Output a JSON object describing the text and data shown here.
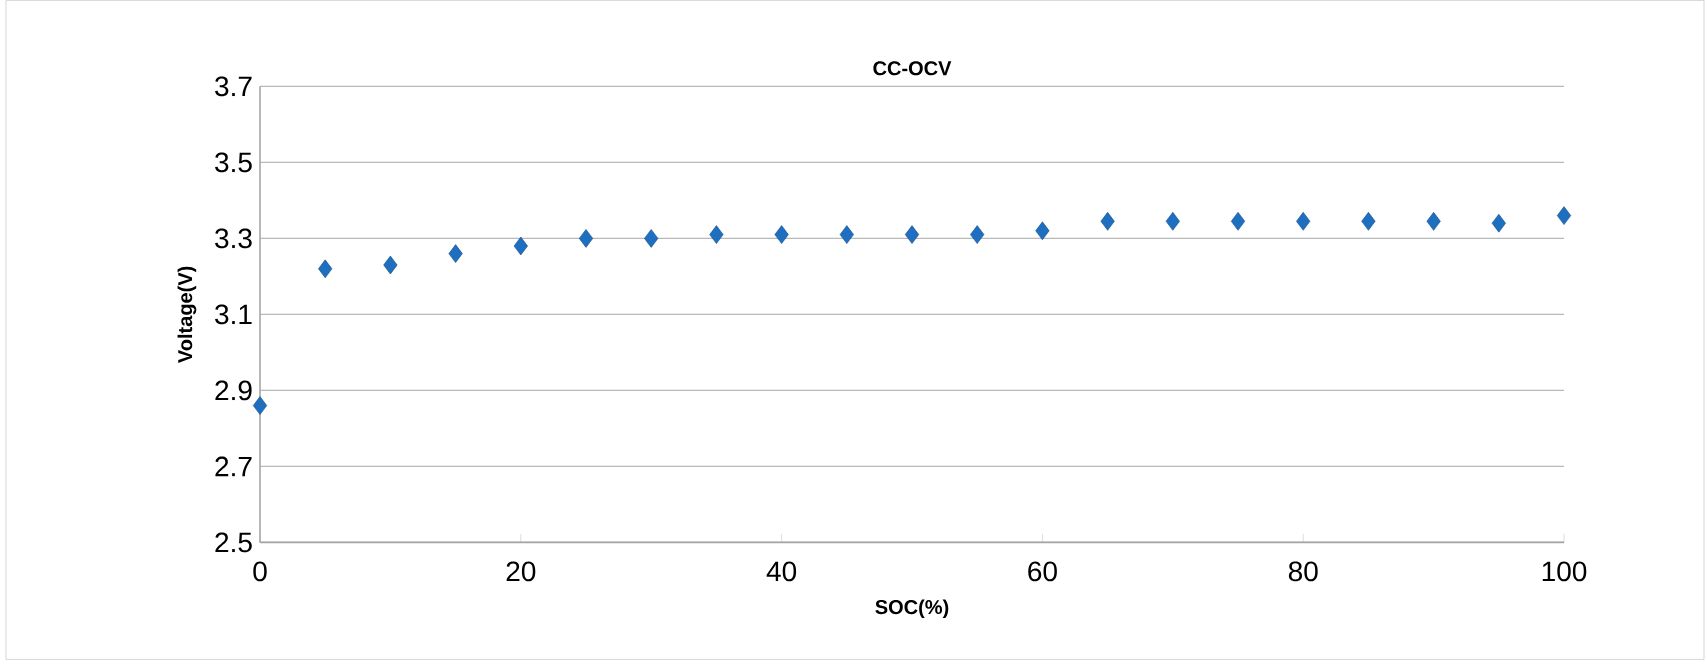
{
  "chart_data": {
    "type": "scatter",
    "title": "CC-OCV",
    "xlabel": "SOC(%)",
    "ylabel": "Voltage(V)",
    "x": [
      0,
      5,
      10,
      15,
      20,
      25,
      30,
      35,
      40,
      45,
      50,
      55,
      60,
      65,
      70,
      75,
      80,
      85,
      90,
      95,
      100
    ],
    "values": [
      2.86,
      3.22,
      3.23,
      3.26,
      3.28,
      3.3,
      3.3,
      3.31,
      3.31,
      3.31,
      3.31,
      3.31,
      3.32,
      3.345,
      3.345,
      3.345,
      3.345,
      3.345,
      3.345,
      3.34,
      3.36
    ],
    "color": "#1f6fc0",
    "marker": "diamond",
    "xlim": [
      0,
      100
    ],
    "xticks": [
      0,
      20,
      40,
      60,
      80,
      100
    ],
    "ylim": [
      2.5,
      3.7
    ],
    "yticks": [
      2.5,
      2.7,
      2.9,
      3.1,
      3.3,
      3.5,
      3.7
    ],
    "grid": "y"
  }
}
